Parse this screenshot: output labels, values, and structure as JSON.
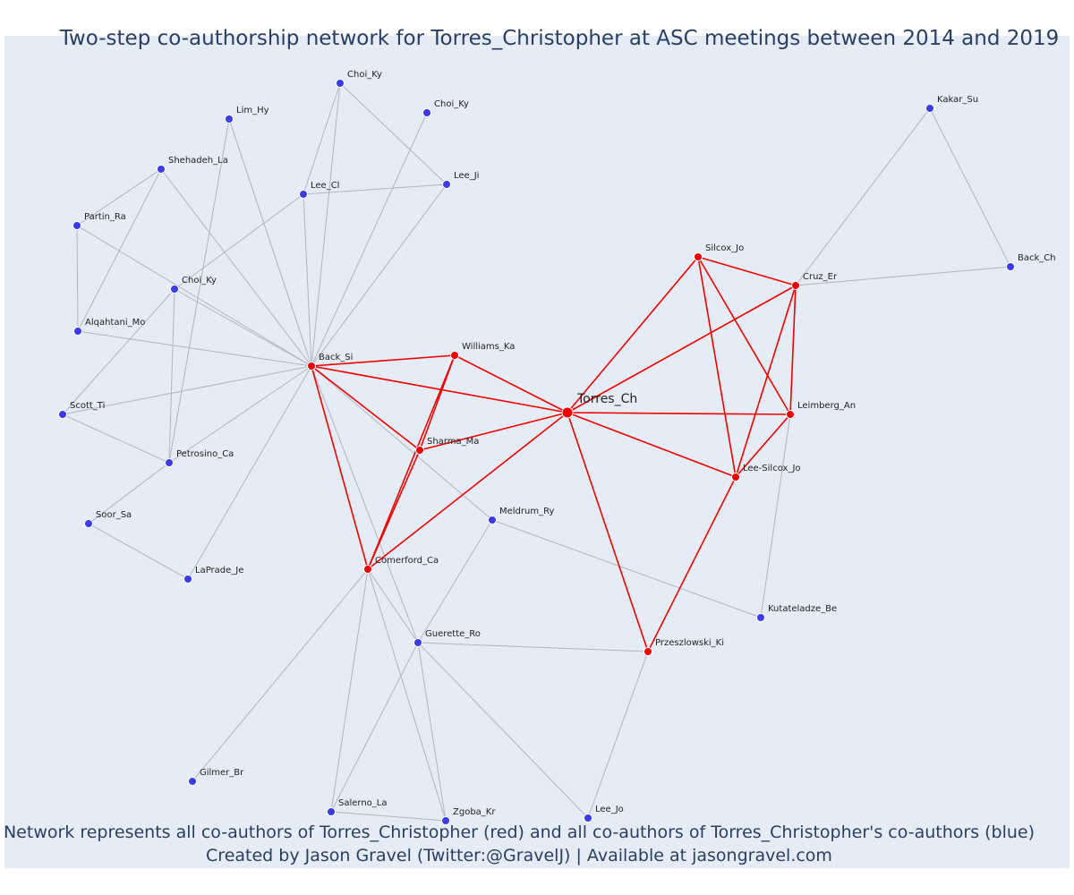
{
  "title": "Two-step co-authorship network for Torres_Christopher at ASC meetings between 2014 and 2019",
  "caption": {
    "line1": "Network represents all co-authors of Torres_Christopher (red) and all co-authors of Torres_Christopher's co-authors (blue)",
    "line2": "Created by Jason Gravel (Twitter:@GravelJ) | Available at jasongravel.com"
  },
  "colors": {
    "red": "#ef0000",
    "blue": "#3b3be8",
    "grey_edge": "#b4b4c4",
    "background": "#e5ecf6"
  },
  "nodes": [
    {
      "id": "torres_ch",
      "label": "Torres_Ch",
      "group": "focal"
    },
    {
      "id": "back_si",
      "label": "Back_Si",
      "group": "red"
    },
    {
      "id": "williams_ka",
      "label": "Williams_Ka",
      "group": "red"
    },
    {
      "id": "sharma_ma",
      "label": "Sharma_Ma",
      "group": "red"
    },
    {
      "id": "comerford_ca",
      "label": "Comerford_Ca",
      "group": "red"
    },
    {
      "id": "silcox_jo",
      "label": "Silcox_Jo",
      "group": "red"
    },
    {
      "id": "cruz_er",
      "label": "Cruz_Er",
      "group": "red"
    },
    {
      "id": "leimberg_an",
      "label": "Leimberg_An",
      "group": "red"
    },
    {
      "id": "lee_silcox_jo",
      "label": "Lee-Silcox_Jo",
      "group": "red"
    },
    {
      "id": "przeszlowski_ki",
      "label": "Przeszlowski_Ki",
      "group": "red"
    },
    {
      "id": "choi_ky_top",
      "label": "Choi_Ky",
      "group": "blue"
    },
    {
      "id": "choi_ky_2",
      "label": "Choi_Ky",
      "group": "blue"
    },
    {
      "id": "lim_hy",
      "label": "Lim_Hy",
      "group": "blue"
    },
    {
      "id": "shehadeh_la",
      "label": "Shehadeh_La",
      "group": "blue"
    },
    {
      "id": "lee_cl",
      "label": "Lee_Cl",
      "group": "blue"
    },
    {
      "id": "lee_ji",
      "label": "Lee_Ji",
      "group": "blue"
    },
    {
      "id": "partin_ra",
      "label": "Partin_Ra",
      "group": "blue"
    },
    {
      "id": "choi_ky_mid",
      "label": "Choi_Ky",
      "group": "blue"
    },
    {
      "id": "alqahtani_mo",
      "label": "Alqahtani_Mo",
      "group": "blue"
    },
    {
      "id": "scott_ti",
      "label": "Scott_Ti",
      "group": "blue"
    },
    {
      "id": "petrosino_ca",
      "label": "Petrosino_Ca",
      "group": "blue"
    },
    {
      "id": "soor_sa",
      "label": "Soor_Sa",
      "group": "blue"
    },
    {
      "id": "laprade_je",
      "label": "LaPrade_Je",
      "group": "blue"
    },
    {
      "id": "meldrum_ry",
      "label": "Meldrum_Ry",
      "group": "blue"
    },
    {
      "id": "guerette_ro",
      "label": "Guerette_Ro",
      "group": "blue"
    },
    {
      "id": "gilmer_br",
      "label": "Gilmer_Br",
      "group": "blue"
    },
    {
      "id": "salerno_la",
      "label": "Salerno_La",
      "group": "blue"
    },
    {
      "id": "zgoba_kr",
      "label": "Zgoba_Kr",
      "group": "blue"
    },
    {
      "id": "lee_jo",
      "label": "Lee_Jo",
      "group": "blue"
    },
    {
      "id": "kutateladze_be",
      "label": "Kutateladze_Be",
      "group": "blue"
    },
    {
      "id": "kakar_su",
      "label": "Kakar_Su",
      "group": "blue"
    },
    {
      "id": "back_ch",
      "label": "Back_Ch",
      "group": "blue"
    }
  ],
  "edges": [
    [
      "torres_ch",
      "back_si"
    ],
    [
      "torres_ch",
      "williams_ka"
    ],
    [
      "torres_ch",
      "sharma_ma"
    ],
    [
      "torres_ch",
      "comerford_ca"
    ],
    [
      "torres_ch",
      "silcox_jo"
    ],
    [
      "torres_ch",
      "cruz_er"
    ],
    [
      "torres_ch",
      "leimberg_an"
    ],
    [
      "torres_ch",
      "lee_silcox_jo"
    ],
    [
      "torres_ch",
      "przeszlowski_ki"
    ],
    [
      "back_si",
      "williams_ka"
    ],
    [
      "back_si",
      "sharma_ma"
    ],
    [
      "back_si",
      "comerford_ca"
    ],
    [
      "williams_ka",
      "sharma_ma"
    ],
    [
      "williams_ka",
      "comerford_ca"
    ],
    [
      "sharma_ma",
      "comerford_ca"
    ],
    [
      "silcox_jo",
      "cruz_er"
    ],
    [
      "silcox_jo",
      "leimberg_an"
    ],
    [
      "silcox_jo",
      "lee_silcox_jo"
    ],
    [
      "cruz_er",
      "leimberg_an"
    ],
    [
      "cruz_er",
      "lee_silcox_jo"
    ],
    [
      "leimberg_an",
      "lee_silcox_jo"
    ],
    [
      "lee_silcox_jo",
      "przeszlowski_ki"
    ],
    [
      "back_si",
      "choi_ky_top"
    ],
    [
      "back_si",
      "choi_ky_2"
    ],
    [
      "back_si",
      "lim_hy"
    ],
    [
      "back_si",
      "shehadeh_la"
    ],
    [
      "back_si",
      "lee_cl"
    ],
    [
      "back_si",
      "lee_ji"
    ],
    [
      "back_si",
      "partin_ra"
    ],
    [
      "back_si",
      "choi_ky_mid"
    ],
    [
      "back_si",
      "alqahtani_mo"
    ],
    [
      "back_si",
      "scott_ti"
    ],
    [
      "back_si",
      "petrosino_ca"
    ],
    [
      "back_si",
      "laprade_je"
    ],
    [
      "back_si",
      "meldrum_ry"
    ],
    [
      "back_si",
      "guerette_ro"
    ],
    [
      "choi_ky_top",
      "lee_cl"
    ],
    [
      "choi_ky_top",
      "lee_ji"
    ],
    [
      "lee_cl",
      "lee_ji"
    ],
    [
      "lee_cl",
      "choi_ky_mid"
    ],
    [
      "lim_hy",
      "petrosino_ca"
    ],
    [
      "shehadeh_la",
      "partin_ra"
    ],
    [
      "shehadeh_la",
      "alqahtani_mo"
    ],
    [
      "partin_ra",
      "alqahtani_mo"
    ],
    [
      "choi_ky_mid",
      "scott_ti"
    ],
    [
      "choi_ky_mid",
      "petrosino_ca"
    ],
    [
      "scott_ti",
      "petrosino_ca"
    ],
    [
      "petrosino_ca",
      "soor_sa"
    ],
    [
      "soor_sa",
      "laprade_je"
    ],
    [
      "comerford_ca",
      "guerette_ro"
    ],
    [
      "comerford_ca",
      "gilmer_br"
    ],
    [
      "comerford_ca",
      "salerno_la"
    ],
    [
      "comerford_ca",
      "zgoba_kr"
    ],
    [
      "guerette_ro",
      "meldrum_ry"
    ],
    [
      "guerette_ro",
      "przeszlowski_ki"
    ],
    [
      "guerette_ro",
      "salerno_la"
    ],
    [
      "guerette_ro",
      "zgoba_kr"
    ],
    [
      "guerette_ro",
      "lee_jo"
    ],
    [
      "salerno_la",
      "zgoba_kr"
    ],
    [
      "meldrum_ry",
      "kutateladze_be"
    ],
    [
      "leimberg_an",
      "kutateladze_be"
    ],
    [
      "przeszlowski_ki",
      "lee_jo"
    ],
    [
      "cruz_er",
      "kakar_su"
    ],
    [
      "cruz_er",
      "back_ch"
    ],
    [
      "kakar_su",
      "back_ch"
    ]
  ]
}
